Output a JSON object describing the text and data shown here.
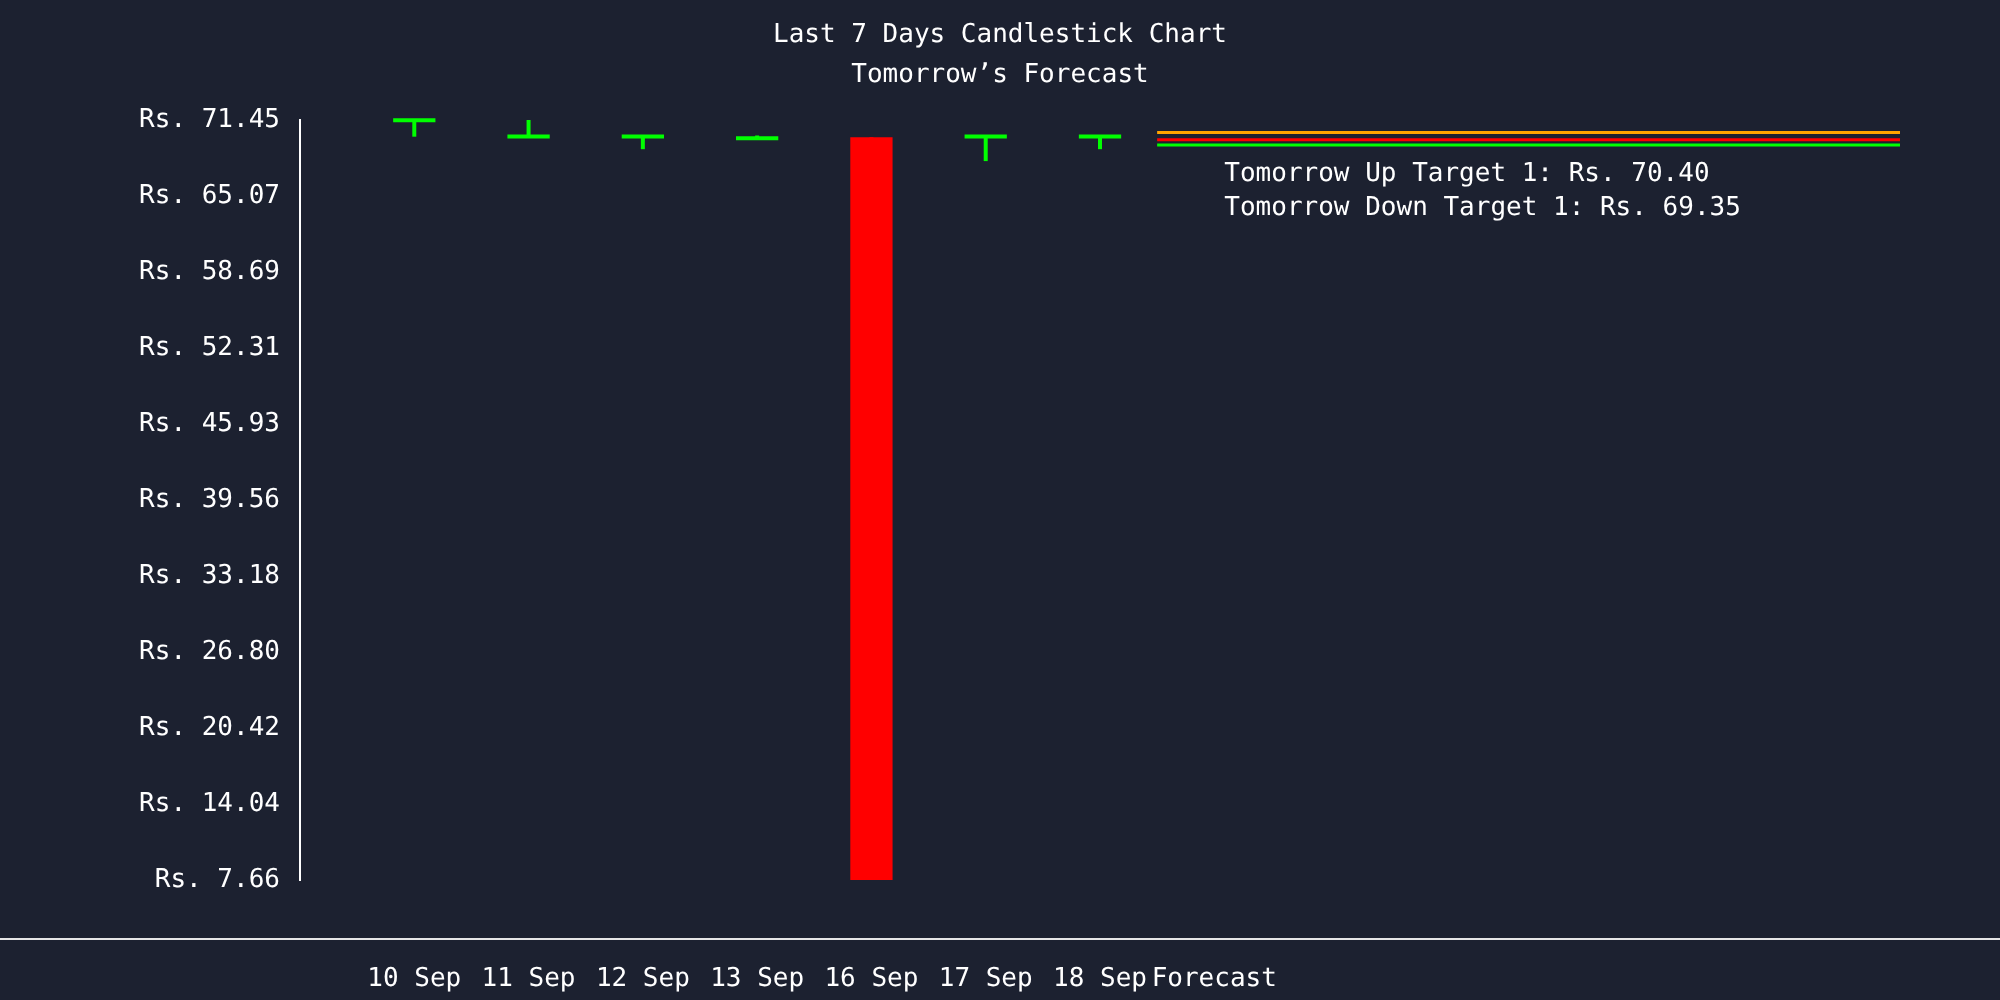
{
  "chart_data": {
    "type": "candlestick",
    "title": "Last 7 Days Candlestick Chart",
    "subtitle": "Tomorrow’s Forecast",
    "categories": [
      "10 Sep",
      "11 Sep",
      "12 Sep",
      "13 Sep",
      "16 Sep",
      "17 Sep",
      "18 Sep",
      "Forecast"
    ],
    "ohlc": [
      [
        71.4,
        71.45,
        70.05,
        71.45
      ],
      [
        70.05,
        71.45,
        70.05,
        70.1
      ],
      [
        70.05,
        70.1,
        69.0,
        70.1
      ],
      [
        69.9,
        70.15,
        69.9,
        69.95
      ],
      [
        70.0,
        70.0,
        7.66,
        7.66
      ],
      [
        70.05,
        70.1,
        68.0,
        70.1
      ],
      [
        70.05,
        70.1,
        69.0,
        70.1
      ],
      null
    ],
    "colors": [
      "#00ff00",
      "#00ff00",
      "#00ff00",
      "#00ff00",
      "#ff0000",
      "#00ff00",
      "#00ff00",
      null
    ],
    "ylim": [
      7.66,
      71.45
    ],
    "yticks": [
      {
        "value": 71.45,
        "label": "Rs. 71.45"
      },
      {
        "value": 65.07,
        "label": "Rs. 65.07"
      },
      {
        "value": 58.69,
        "label": "Rs. 58.69"
      },
      {
        "value": 52.31,
        "label": "Rs. 52.31"
      },
      {
        "value": 45.93,
        "label": "Rs. 45.93"
      },
      {
        "value": 39.56,
        "label": "Rs. 39.56"
      },
      {
        "value": 33.18,
        "label": "Rs. 33.18"
      },
      {
        "value": 26.8,
        "label": "Rs. 26.80"
      },
      {
        "value": 20.42,
        "label": "Rs. 20.42"
      },
      {
        "value": 14.04,
        "label": "Rs. 14.04"
      },
      {
        "value": 7.66,
        "label": "Rs. 7.66"
      }
    ],
    "ref_lines": [
      {
        "axis": "y",
        "value": 70.4,
        "label": "Tomorrow Up Target 1: Rs. 70.40",
        "color": "#ffa500"
      },
      {
        "axis": "y",
        "value": 69.8,
        "color": "#ff0000"
      },
      {
        "axis": "y",
        "value": 69.35,
        "label": "Tomorrow Down Target 1: Rs. 69.35",
        "color": "#00ff00"
      }
    ]
  }
}
